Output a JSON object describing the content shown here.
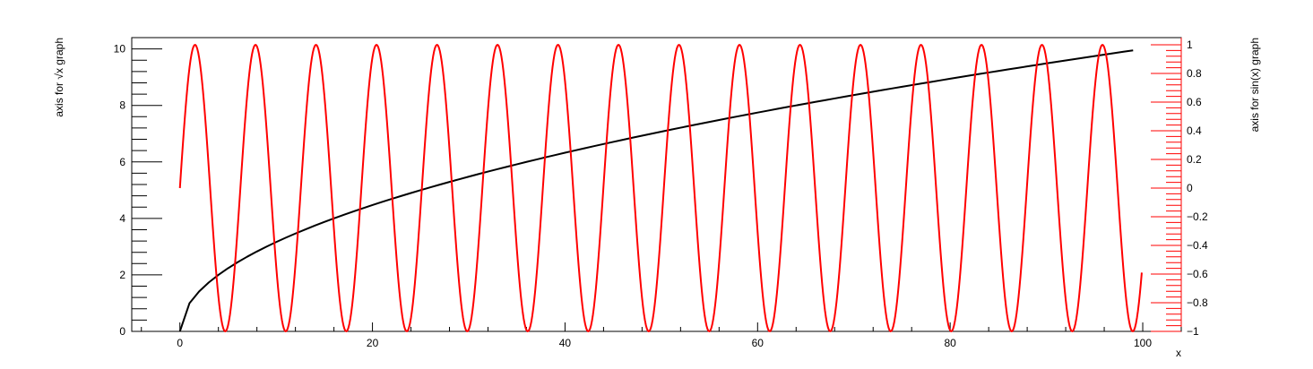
{
  "chart_data": {
    "type": "line",
    "xlabel": "x",
    "xlim": [
      -5,
      104
    ],
    "xticks": [
      0,
      20,
      40,
      60,
      80,
      100
    ],
    "left_axis": {
      "title": "axis for √x graph",
      "ylim": [
        0,
        10.4
      ],
      "ticks": [
        0,
        2,
        4,
        6,
        8,
        10
      ],
      "color": "#000000"
    },
    "right_axis": {
      "title": "axis for sin(x) graph",
      "ylim": [
        -1,
        1.05
      ],
      "ticks": [
        -1,
        -0.8,
        -0.6,
        -0.4,
        -0.2,
        0,
        0.2,
        0.4,
        0.6,
        0.8,
        1
      ],
      "tick_labels": [
        "−1",
        "−0.8",
        "−0.6",
        "−0.4",
        "−0.2",
        "0",
        "0.2",
        "0.4",
        "0.6",
        "0.8",
        "1"
      ],
      "color": "#ff0000"
    },
    "series": [
      {
        "function": "sqrt(x)",
        "axis": "left",
        "color": "#000000",
        "x_start": 0,
        "x_end": 99,
        "x_step": 1
      },
      {
        "function": "sin(x)",
        "axis": "right",
        "color": "#ff0000",
        "x_start": 0,
        "x_end": 99.9,
        "x_step": 0.1
      }
    ]
  }
}
